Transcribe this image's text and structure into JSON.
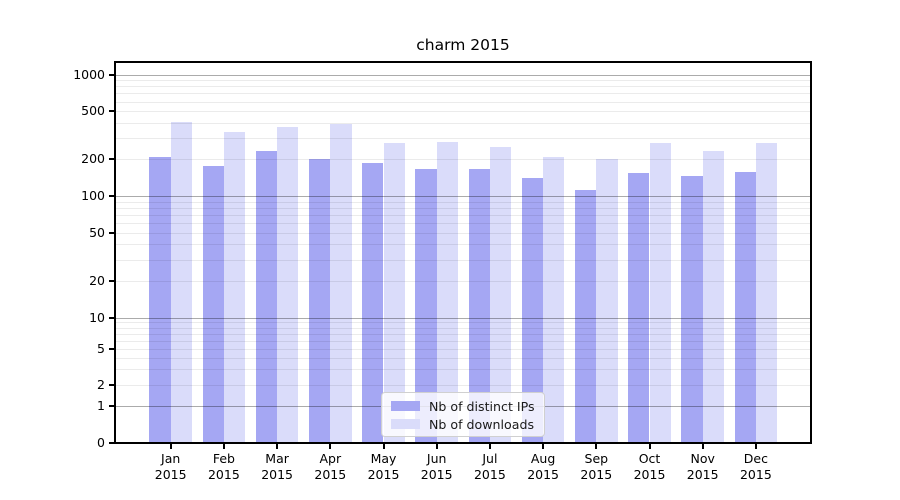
{
  "title": "charm 2015",
  "chart_data": {
    "type": "bar",
    "title": "charm 2015",
    "yscale": "symlog",
    "ylim": [
      0,
      1270
    ],
    "grid": true,
    "legend_position": "lower center",
    "categories": [
      "Jan",
      "Feb",
      "Mar",
      "Apr",
      "May",
      "Jun",
      "Jul",
      "Aug",
      "Sep",
      "Oct",
      "Nov",
      "Dec"
    ],
    "year_label": "2015",
    "y_ticks": [
      0,
      1,
      2,
      5,
      10,
      20,
      50,
      100,
      200,
      500,
      1000
    ],
    "series": [
      {
        "name": "Nb of distinct IPs",
        "color": "#a5a7f3",
        "values": [
          210,
          177,
          235,
          201,
          186,
          167,
          167,
          140,
          112,
          155,
          146,
          158
        ]
      },
      {
        "name": "Nb of downloads",
        "color": "#dadcfa",
        "values": [
          410,
          338,
          372,
          392,
          272,
          281,
          252,
          211,
          200,
          271,
          236,
          273
        ]
      }
    ]
  }
}
